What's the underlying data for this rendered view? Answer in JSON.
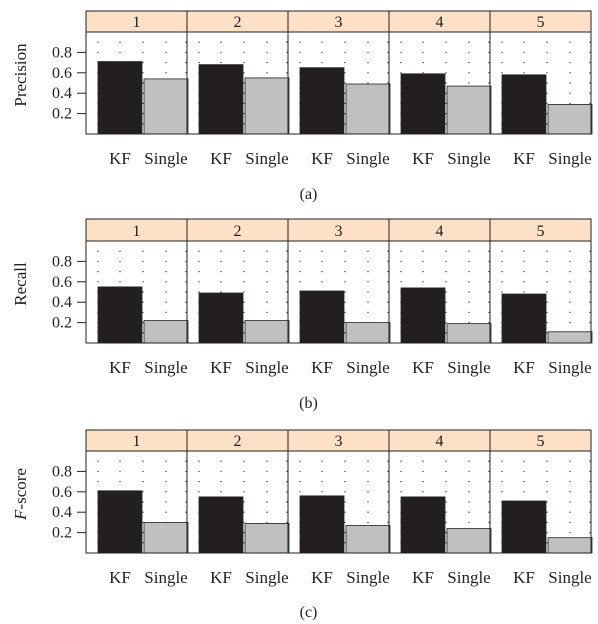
{
  "chart_data": [
    {
      "type": "bar",
      "panel_label": "(a)",
      "ylabel": "Precision",
      "ylabel_italic_prefix": "",
      "ylabel_suffix": "Precision",
      "panels": [
        "1",
        "2",
        "3",
        "4",
        "5"
      ],
      "categories": [
        "KF",
        "Single"
      ],
      "yticks": [
        "0.2",
        "0.4",
        "0.6",
        "0.8"
      ],
      "ylim": [
        0,
        1.0
      ],
      "values": [
        [
          0.71,
          0.54
        ],
        [
          0.68,
          0.55
        ],
        [
          0.65,
          0.49
        ],
        [
          0.59,
          0.47
        ],
        [
          0.58,
          0.29
        ]
      ],
      "grid": "dotted"
    },
    {
      "type": "bar",
      "panel_label": "(b)",
      "ylabel": "Recall",
      "ylabel_italic_prefix": "",
      "ylabel_suffix": "Recall",
      "panels": [
        "1",
        "2",
        "3",
        "4",
        "5"
      ],
      "categories": [
        "KF",
        "Single"
      ],
      "yticks": [
        "0.2",
        "0.4",
        "0.6",
        "0.8"
      ],
      "ylim": [
        0,
        1.0
      ],
      "values": [
        [
          0.55,
          0.22
        ],
        [
          0.49,
          0.22
        ],
        [
          0.51,
          0.2
        ],
        [
          0.54,
          0.19
        ],
        [
          0.48,
          0.11
        ]
      ],
      "grid": "dotted"
    },
    {
      "type": "bar",
      "panel_label": "(c)",
      "ylabel": "F-score",
      "ylabel_italic_prefix": "F",
      "ylabel_suffix": "-score",
      "panels": [
        "1",
        "2",
        "3",
        "4",
        "5"
      ],
      "categories": [
        "KF",
        "Single"
      ],
      "yticks": [
        "0.2",
        "0.4",
        "0.6",
        "0.8"
      ],
      "ylim": [
        0,
        1.0
      ],
      "values": [
        [
          0.61,
          0.3
        ],
        [
          0.55,
          0.29
        ],
        [
          0.56,
          0.27
        ],
        [
          0.55,
          0.24
        ],
        [
          0.51,
          0.15
        ]
      ],
      "grid": "dotted"
    }
  ],
  "colors": {
    "kf_bar": "#231f20",
    "single_bar": "#c0c0c0",
    "strip": "#fde0c5",
    "frame": "#222222",
    "grid_dot": "#444444"
  }
}
